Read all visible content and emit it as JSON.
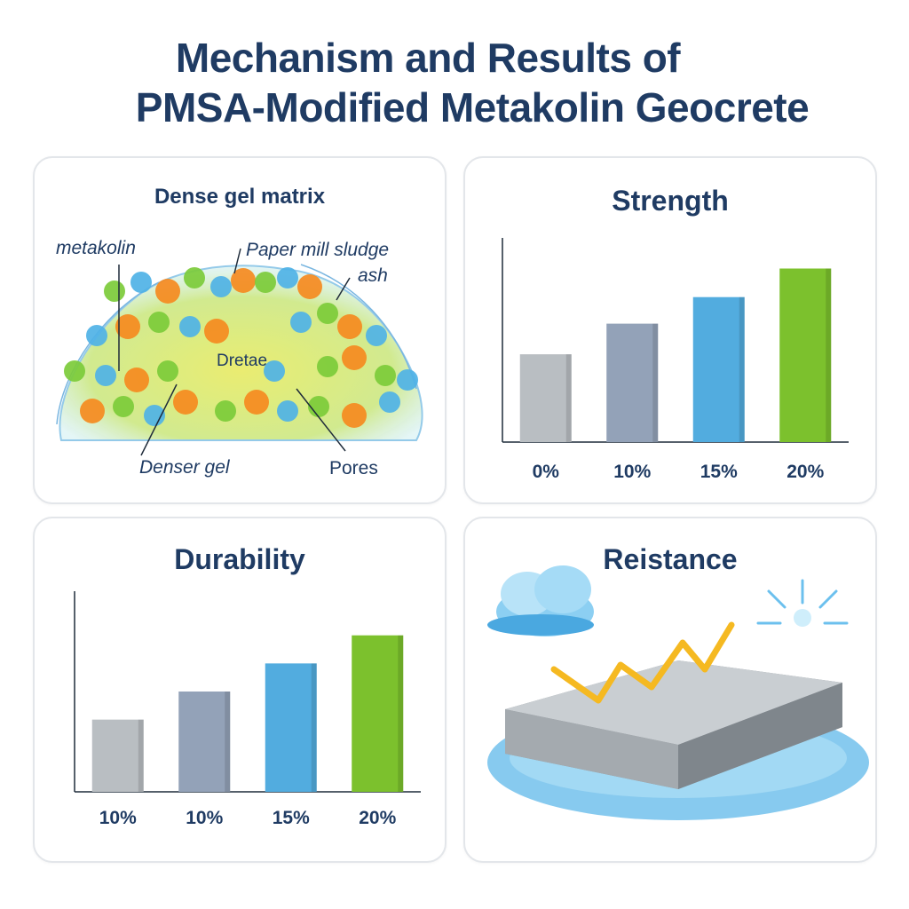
{
  "title": {
    "line1": "Mechanism and Results of",
    "line2": "PMSA-Modified Metakolin Geocrete"
  },
  "panels": {
    "mechanism": {
      "title": "Dense gel matrix",
      "labels": {
        "metakaolin": "metakolin",
        "sludge": "Paper mill sludge",
        "ash": "ash",
        "center": "Dretae",
        "denser": "Denser gel",
        "pores": "Pores"
      }
    },
    "strength": {
      "title": "Strength"
    },
    "durability": {
      "title": "Durability"
    },
    "resistance": {
      "title": "Reistance"
    }
  },
  "chart_data": [
    {
      "type": "bar",
      "title": "Strength",
      "categories": [
        "0%",
        "10%",
        "15%",
        "20%"
      ],
      "values": [
        43,
        58,
        71,
        85
      ],
      "ylim": [
        0,
        100
      ],
      "colors": [
        "#b9bec2",
        "#93a2b8",
        "#52acdf",
        "#7cc12d"
      ]
    },
    {
      "type": "bar",
      "title": "Durability",
      "categories": [
        "10%",
        "10%",
        "15%",
        "20%"
      ],
      "values": [
        36,
        50,
        64,
        78
      ],
      "ylim": [
        0,
        100
      ],
      "colors": [
        "#b9bec2",
        "#93a2b8",
        "#52acdf",
        "#7cc12d"
      ]
    }
  ]
}
